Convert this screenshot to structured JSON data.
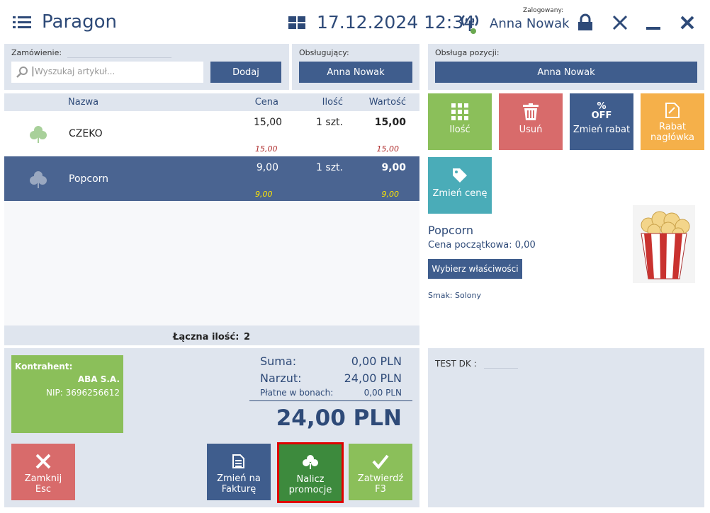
{
  "header": {
    "title": "Paragon",
    "datetime": "17.12.2024 12:34",
    "logged_label": "Zalogowany:",
    "user": "Anna Nowak"
  },
  "order": {
    "label": "Zamówienie:",
    "search_placeholder": "Wyszukaj artykuł...",
    "add_button": "Dodaj"
  },
  "serving": {
    "label": "Obsługujący:",
    "value": "Anna Nowak"
  },
  "position_service": {
    "label": "Obsługa pozycji:",
    "value": "Anna Nowak"
  },
  "table": {
    "columns": [
      "Nazwa",
      "Cena",
      "Ilość",
      "Wartość"
    ],
    "rows": [
      {
        "name": "CZEKO",
        "price": "15,00",
        "quantity": "1 szt.",
        "value": "15,00",
        "base_price": "15,00",
        "base_value": "15,00"
      },
      {
        "name": "Popcorn",
        "price": "9,00",
        "quantity": "1 szt.",
        "value": "9,00",
        "base_price": "9,00",
        "base_value": "9,00"
      }
    ],
    "total_quantity_label": "Łączna ilość:",
    "total_quantity": "2"
  },
  "contractor": {
    "label": "Kontrahent:",
    "name": "ABA S.A.",
    "nip": "NIP: 3696256612"
  },
  "summary": {
    "sum_label": "Suma:",
    "sum": "0,00 PLN",
    "surcharge_label": "Narzut:",
    "surcharge": "24,00 PLN",
    "vouchers_label": "Płatne w bonach:",
    "vouchers": "0,00 PLN",
    "total": "24,00 PLN"
  },
  "actions": {
    "close": [
      "Zamknij",
      "Esc"
    ],
    "invoice": [
      "Zmień na",
      "Fakturę"
    ],
    "promotions": [
      "Nalicz",
      "promocje"
    ],
    "confirm": [
      "Zatwierdź",
      "F3"
    ]
  },
  "tiles": {
    "quantity": "Ilość",
    "delete": "Usuń",
    "discount_icon": [
      "%",
      "OFF"
    ],
    "discount": "Zmień rabat",
    "header_discount": "Rabat nagłówka",
    "price": "Zmień cenę"
  },
  "product": {
    "name": "Popcorn",
    "initial_price": "Cena początkowa: 0,00",
    "properties_button": "Wybierz właściwości",
    "flavor": "Smak: Solony"
  },
  "document": {
    "label": "TEST DK :"
  }
}
